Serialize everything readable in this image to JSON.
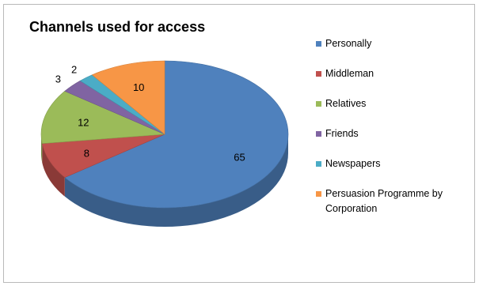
{
  "chart_data": {
    "type": "pie",
    "title": "Channels used for access",
    "series": [
      {
        "name": "Personally",
        "value": 65,
        "color": "#4f81bd"
      },
      {
        "name": "Middleman",
        "value": 8,
        "color": "#c0504d"
      },
      {
        "name": "Relatives",
        "value": 12,
        "color": "#9bbb59"
      },
      {
        "name": "Friends",
        "value": 3,
        "color": "#8064a2"
      },
      {
        "name": "Newspapers",
        "value": 2,
        "color": "#4bacc6"
      },
      {
        "name": "Persuasion Programme by Corporation",
        "value": 10,
        "color": "#f79646"
      }
    ],
    "legend_position": "right",
    "style": "3d"
  }
}
